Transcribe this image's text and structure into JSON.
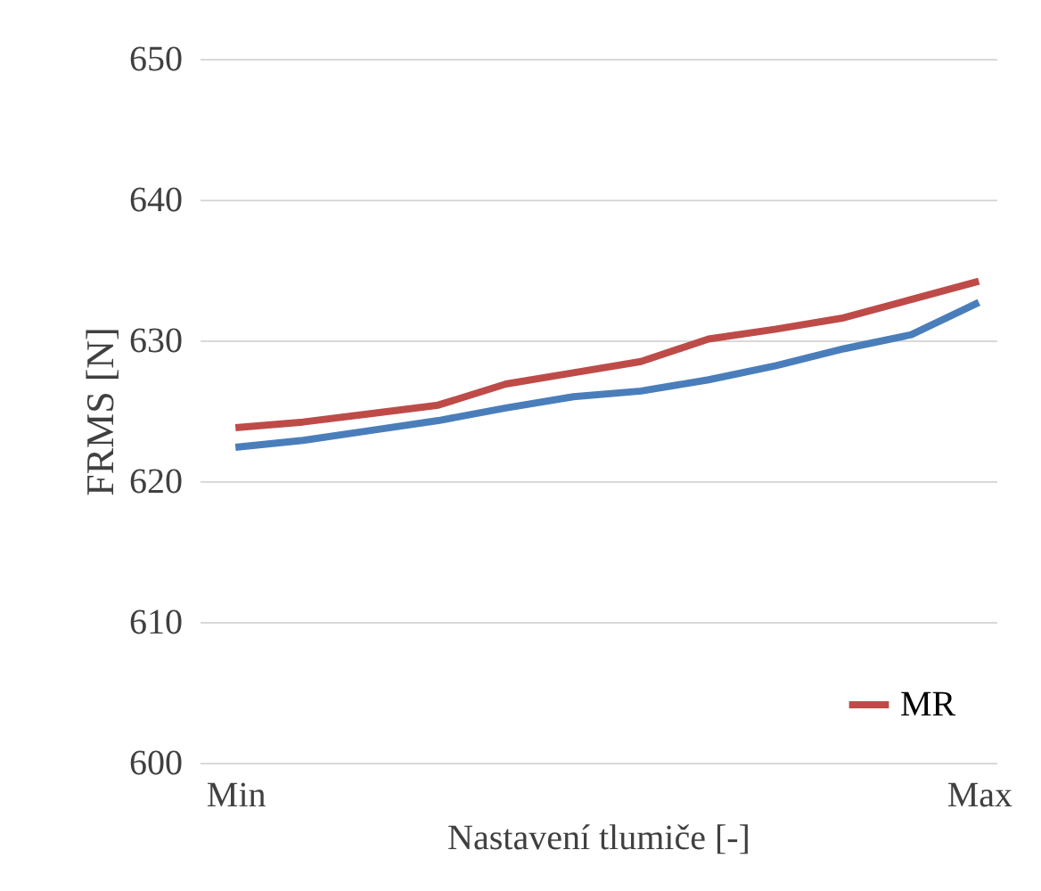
{
  "chart_data": {
    "type": "line",
    "xlabel": "Nastavení tlumiče [-]",
    "ylabel": "FRMS [N]",
    "categories": [
      "Min",
      null,
      null,
      null,
      null,
      null,
      null,
      null,
      null,
      null,
      null,
      "Max"
    ],
    "series": [
      {
        "color": "#4a7ebb",
        "values": [
          622.4,
          622.9,
          623.6,
          624.3,
          625.2,
          626.0,
          626.4,
          627.2,
          628.2,
          629.4,
          630.4,
          632.7
        ]
      },
      {
        "name": "MR",
        "color": "#be4b48",
        "values": [
          623.8,
          624.2,
          624.8,
          625.4,
          626.9,
          627.7,
          628.5,
          630.1,
          630.8,
          631.6,
          632.9,
          634.2
        ]
      }
    ],
    "ylim": [
      600,
      650
    ],
    "yticks": [
      600,
      610,
      620,
      630,
      640,
      650
    ],
    "grid": "y",
    "legend": "bottom right",
    "line_style": "solid",
    "marker": "none"
  }
}
